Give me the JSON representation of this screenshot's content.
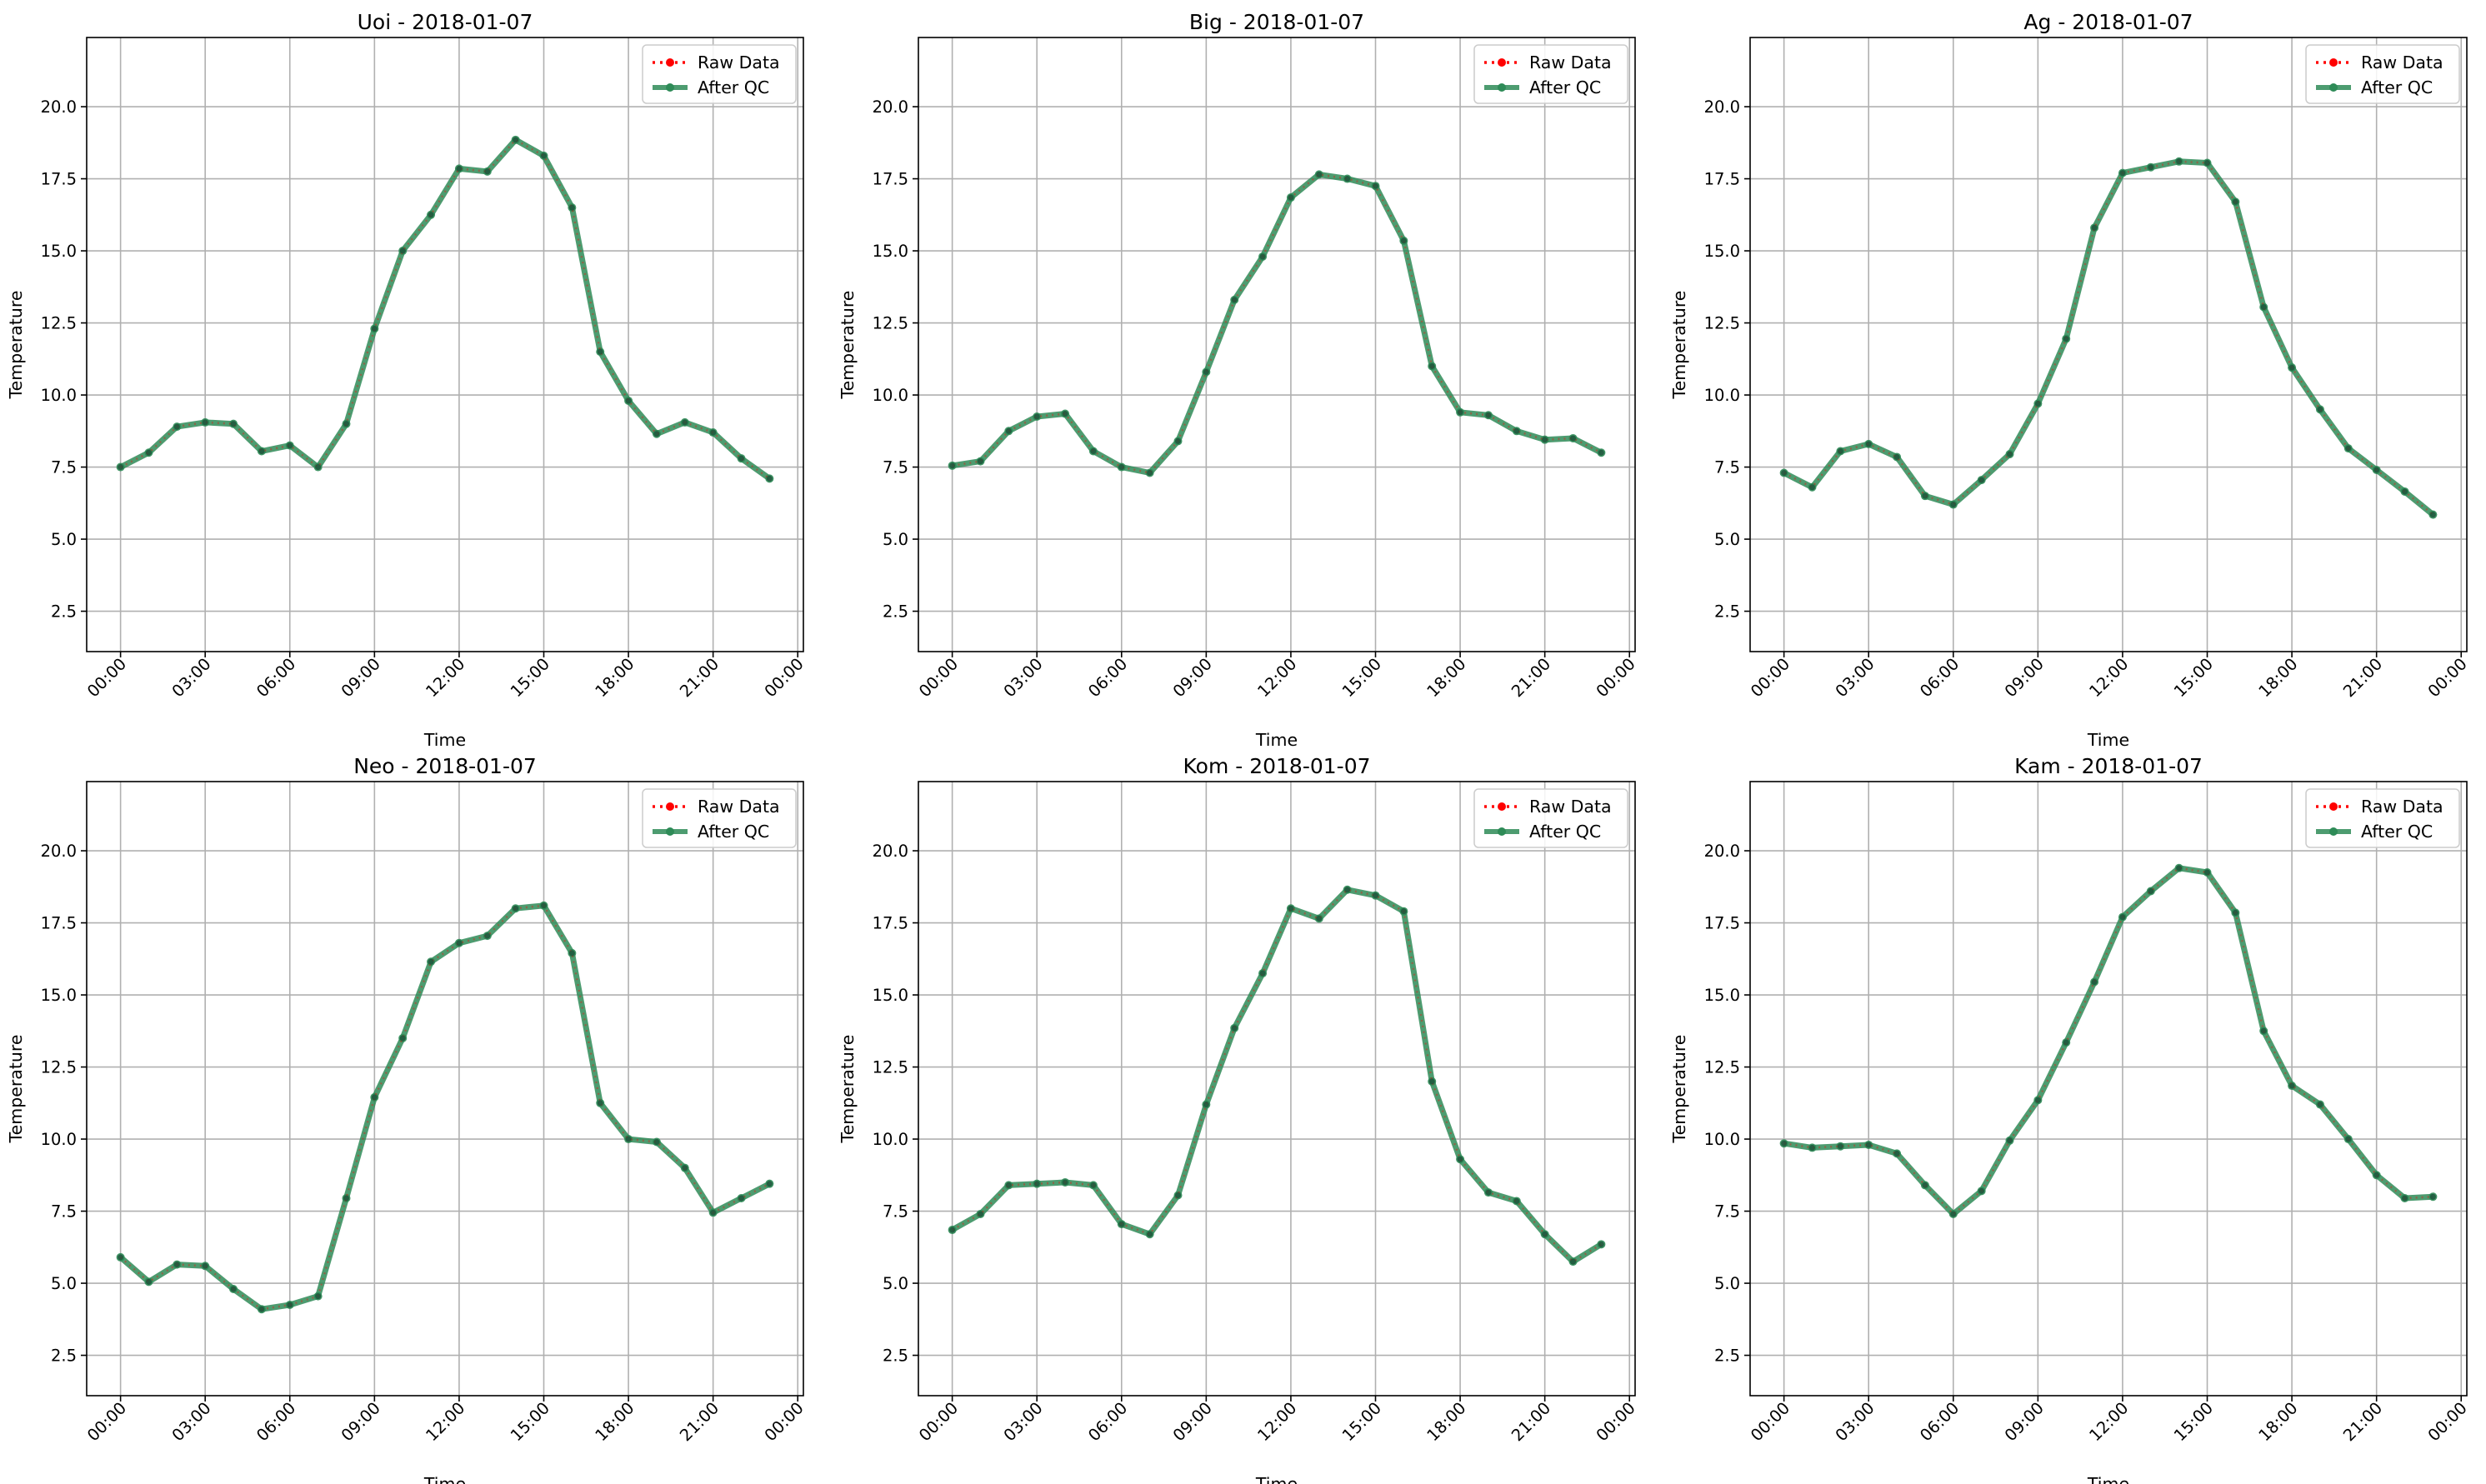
{
  "figure": {
    "legend_labels": {
      "raw": "Raw Data",
      "qc": "After QC"
    },
    "colors": {
      "raw": "#ff0000",
      "qc": "#2e8b57",
      "grid": "#b0b0b0",
      "axis": "#000000"
    }
  },
  "chart_data": [
    {
      "type": "line",
      "title": "Uoi - 2018-01-07",
      "xlabel": "Time",
      "ylabel": "Temperature",
      "x_ticks": [
        "00:00",
        "03:00",
        "06:00",
        "09:00",
        "12:00",
        "15:00",
        "18:00",
        "21:00",
        "00:00"
      ],
      "xlim_hours": [
        -1.2,
        24.2
      ],
      "ylim": [
        1.1,
        22.4
      ],
      "y_ticks": [
        2.5,
        5.0,
        7.5,
        10.0,
        12.5,
        15.0,
        17.5,
        20.0
      ],
      "grid": true,
      "legend": "upper right",
      "x_hours": [
        0,
        1,
        2,
        3,
        4,
        5,
        6,
        7,
        8,
        9,
        10,
        11,
        12,
        13,
        14,
        15,
        16,
        17,
        18,
        19,
        20,
        21,
        22,
        23
      ],
      "series": [
        {
          "name": "Raw Data",
          "values": [
            7.5,
            8.0,
            8.9,
            9.05,
            9.0,
            8.05,
            8.25,
            7.5,
            9.0,
            12.3,
            15.0,
            16.25,
            17.85,
            17.75,
            18.85,
            18.3,
            16.5,
            11.5,
            9.8,
            8.65,
            9.05,
            8.7,
            7.8,
            7.1
          ]
        },
        {
          "name": "After QC",
          "values": [
            7.5,
            8.0,
            8.9,
            9.05,
            9.0,
            8.05,
            8.25,
            7.5,
            9.0,
            12.3,
            15.0,
            16.25,
            17.85,
            17.75,
            18.85,
            18.3,
            16.5,
            11.5,
            9.8,
            8.65,
            9.05,
            8.7,
            7.8,
            7.1
          ]
        }
      ]
    },
    {
      "type": "line",
      "title": "Big - 2018-01-07",
      "xlabel": "Time",
      "ylabel": "Temperature",
      "x_ticks": [
        "00:00",
        "03:00",
        "06:00",
        "09:00",
        "12:00",
        "15:00",
        "18:00",
        "21:00",
        "00:00"
      ],
      "xlim_hours": [
        -1.2,
        24.2
      ],
      "ylim": [
        1.1,
        22.4
      ],
      "y_ticks": [
        2.5,
        5.0,
        7.5,
        10.0,
        12.5,
        15.0,
        17.5,
        20.0
      ],
      "grid": true,
      "legend": "upper right",
      "x_hours": [
        0,
        1,
        2,
        3,
        4,
        5,
        6,
        7,
        8,
        9,
        10,
        11,
        12,
        13,
        14,
        15,
        16,
        17,
        18,
        19,
        20,
        21,
        22,
        23
      ],
      "series": [
        {
          "name": "Raw Data",
          "values": [
            7.55,
            7.7,
            8.75,
            9.25,
            9.35,
            8.05,
            7.5,
            7.3,
            8.4,
            10.8,
            13.3,
            14.8,
            16.85,
            17.65,
            17.5,
            17.25,
            15.35,
            11.0,
            9.4,
            9.3,
            8.75,
            8.45,
            8.5,
            8.0
          ]
        },
        {
          "name": "After QC",
          "values": [
            7.55,
            7.7,
            8.75,
            9.25,
            9.35,
            8.05,
            7.5,
            7.3,
            8.4,
            10.8,
            13.3,
            14.8,
            16.85,
            17.65,
            17.5,
            17.25,
            15.35,
            11.0,
            9.4,
            9.3,
            8.75,
            8.45,
            8.5,
            8.0
          ]
        }
      ]
    },
    {
      "type": "line",
      "title": "Ag - 2018-01-07",
      "xlabel": "Time",
      "ylabel": "Temperature",
      "x_ticks": [
        "00:00",
        "03:00",
        "06:00",
        "09:00",
        "12:00",
        "15:00",
        "18:00",
        "21:00",
        "00:00"
      ],
      "xlim_hours": [
        -1.2,
        24.2
      ],
      "ylim": [
        1.1,
        22.4
      ],
      "y_ticks": [
        2.5,
        5.0,
        7.5,
        10.0,
        12.5,
        15.0,
        17.5,
        20.0
      ],
      "grid": true,
      "legend": "upper right",
      "x_hours": [
        0,
        1,
        2,
        3,
        4,
        5,
        6,
        7,
        8,
        9,
        10,
        11,
        12,
        13,
        14,
        15,
        16,
        17,
        18,
        19,
        20,
        21,
        22,
        23
      ],
      "series": [
        {
          "name": "Raw Data",
          "values": [
            7.3,
            6.8,
            8.05,
            8.3,
            7.85,
            6.5,
            6.2,
            7.05,
            7.95,
            9.7,
            11.95,
            15.8,
            17.7,
            17.9,
            18.1,
            18.05,
            16.7,
            13.05,
            10.95,
            9.5,
            8.15,
            7.4,
            6.65,
            5.85
          ]
        },
        {
          "name": "After QC",
          "values": [
            7.3,
            6.8,
            8.05,
            8.3,
            7.85,
            6.5,
            6.2,
            7.05,
            7.95,
            9.7,
            11.95,
            15.8,
            17.7,
            17.9,
            18.1,
            18.05,
            16.7,
            13.05,
            10.95,
            9.5,
            8.15,
            7.4,
            6.65,
            5.85
          ]
        }
      ]
    },
    {
      "type": "line",
      "title": "Neo - 2018-01-07",
      "xlabel": "Time",
      "ylabel": "Temperature",
      "x_ticks": [
        "00:00",
        "03:00",
        "06:00",
        "09:00",
        "12:00",
        "15:00",
        "18:00",
        "21:00",
        "00:00"
      ],
      "xlim_hours": [
        -1.2,
        24.2
      ],
      "ylim": [
        1.1,
        22.4
      ],
      "y_ticks": [
        2.5,
        5.0,
        7.5,
        10.0,
        12.5,
        15.0,
        17.5,
        20.0
      ],
      "grid": true,
      "legend": "upper right",
      "x_hours": [
        0,
        1,
        2,
        3,
        4,
        5,
        6,
        7,
        8,
        9,
        10,
        11,
        12,
        13,
        14,
        15,
        16,
        17,
        18,
        19,
        20,
        21,
        22,
        23
      ],
      "series": [
        {
          "name": "Raw Data",
          "values": [
            5.9,
            5.05,
            5.65,
            5.6,
            4.8,
            4.1,
            4.25,
            4.55,
            7.95,
            11.45,
            13.5,
            16.15,
            16.8,
            17.05,
            18.0,
            18.1,
            16.45,
            11.25,
            10.0,
            9.9,
            9.0,
            7.45,
            7.95,
            8.45
          ]
        },
        {
          "name": "After QC",
          "values": [
            5.9,
            5.05,
            5.65,
            5.6,
            4.8,
            4.1,
            4.25,
            4.55,
            7.95,
            11.45,
            13.5,
            16.15,
            16.8,
            17.05,
            18.0,
            18.1,
            16.45,
            11.25,
            10.0,
            9.9,
            9.0,
            7.45,
            7.95,
            8.45
          ]
        }
      ]
    },
    {
      "type": "line",
      "title": "Kom - 2018-01-07",
      "xlabel": "Time",
      "ylabel": "Temperature",
      "x_ticks": [
        "00:00",
        "03:00",
        "06:00",
        "09:00",
        "12:00",
        "15:00",
        "18:00",
        "21:00",
        "00:00"
      ],
      "xlim_hours": [
        -1.2,
        24.2
      ],
      "ylim": [
        1.1,
        22.4
      ],
      "y_ticks": [
        2.5,
        5.0,
        7.5,
        10.0,
        12.5,
        15.0,
        17.5,
        20.0
      ],
      "grid": true,
      "legend": "upper right",
      "x_hours": [
        0,
        1,
        2,
        3,
        4,
        5,
        6,
        7,
        8,
        9,
        10,
        11,
        12,
        13,
        14,
        15,
        16,
        17,
        18,
        19,
        20,
        21,
        22,
        23
      ],
      "series": [
        {
          "name": "Raw Data",
          "values": [
            6.85,
            7.4,
            8.4,
            8.45,
            8.5,
            8.4,
            7.05,
            6.7,
            8.05,
            11.2,
            13.85,
            15.75,
            18.0,
            17.65,
            18.65,
            18.45,
            17.9,
            12.0,
            9.3,
            8.15,
            7.85,
            6.7,
            5.75,
            6.35
          ]
        },
        {
          "name": "After QC",
          "values": [
            6.85,
            7.4,
            8.4,
            8.45,
            8.5,
            8.4,
            7.05,
            6.7,
            8.05,
            11.2,
            13.85,
            15.75,
            18.0,
            17.65,
            18.65,
            18.45,
            17.9,
            12.0,
            9.3,
            8.15,
            7.85,
            6.7,
            5.75,
            6.35
          ]
        }
      ]
    },
    {
      "type": "line",
      "title": "Kam - 2018-01-07",
      "xlabel": "Time",
      "ylabel": "Temperature",
      "x_ticks": [
        "00:00",
        "03:00",
        "06:00",
        "09:00",
        "12:00",
        "15:00",
        "18:00",
        "21:00",
        "00:00"
      ],
      "xlim_hours": [
        -1.2,
        24.2
      ],
      "ylim": [
        1.1,
        22.4
      ],
      "y_ticks": [
        2.5,
        5.0,
        7.5,
        10.0,
        12.5,
        15.0,
        17.5,
        20.0
      ],
      "grid": true,
      "legend": "upper right",
      "x_hours": [
        0,
        1,
        2,
        3,
        4,
        5,
        6,
        7,
        8,
        9,
        10,
        11,
        12,
        13,
        14,
        15,
        16,
        17,
        18,
        19,
        20,
        21,
        22,
        23
      ],
      "series": [
        {
          "name": "Raw Data",
          "values": [
            9.85,
            9.7,
            9.75,
            9.8,
            9.5,
            8.4,
            7.4,
            8.2,
            9.95,
            11.35,
            13.35,
            15.45,
            17.7,
            18.6,
            19.4,
            19.25,
            17.85,
            13.75,
            11.85,
            11.2,
            10.0,
            8.75,
            7.95,
            8.0
          ]
        },
        {
          "name": "After QC",
          "values": [
            9.85,
            9.7,
            9.75,
            9.8,
            9.5,
            8.4,
            7.4,
            8.2,
            9.95,
            11.35,
            13.35,
            15.45,
            17.7,
            18.6,
            19.4,
            19.25,
            17.85,
            13.75,
            11.85,
            11.2,
            10.0,
            8.75,
            7.95,
            8.0
          ]
        }
      ]
    }
  ]
}
